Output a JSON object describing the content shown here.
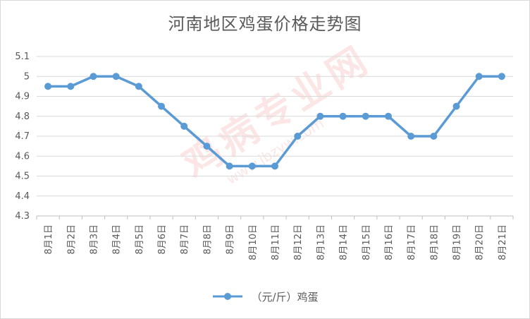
{
  "chart_data": {
    "type": "line",
    "title": "河南地区鸡蛋价格走势图",
    "categories": [
      "8月1日",
      "8月2日",
      "8月3日",
      "8月4日",
      "8月5日",
      "8月6日",
      "8月7日",
      "8月8日",
      "8月9日",
      "8月10日",
      "8月11日",
      "8月12日",
      "8月13日",
      "8月14日",
      "8月15日",
      "8月16日",
      "8月17日",
      "8月18日",
      "8月19日",
      "8月20日",
      "8月21日"
    ],
    "series": [
      {
        "name": "（元/斤）鸡蛋",
        "values": [
          4.95,
          4.95,
          5.0,
          5.0,
          4.95,
          4.85,
          4.75,
          4.65,
          4.55,
          4.55,
          4.55,
          4.7,
          4.8,
          4.8,
          4.8,
          4.8,
          4.7,
          4.7,
          4.85,
          5.0,
          5.0
        ],
        "color": "#5b9bd5"
      }
    ],
    "ylim": [
      4.3,
      5.1
    ],
    "yticks": [
      "4.3",
      "4.4",
      "4.5",
      "4.6",
      "4.7",
      "4.8",
      "4.9",
      "5",
      "5.1"
    ],
    "grid": true,
    "legend_position": "bottom"
  },
  "watermark": {
    "main": "鸡病专业网",
    "sub": "www.jbzyw.com"
  }
}
